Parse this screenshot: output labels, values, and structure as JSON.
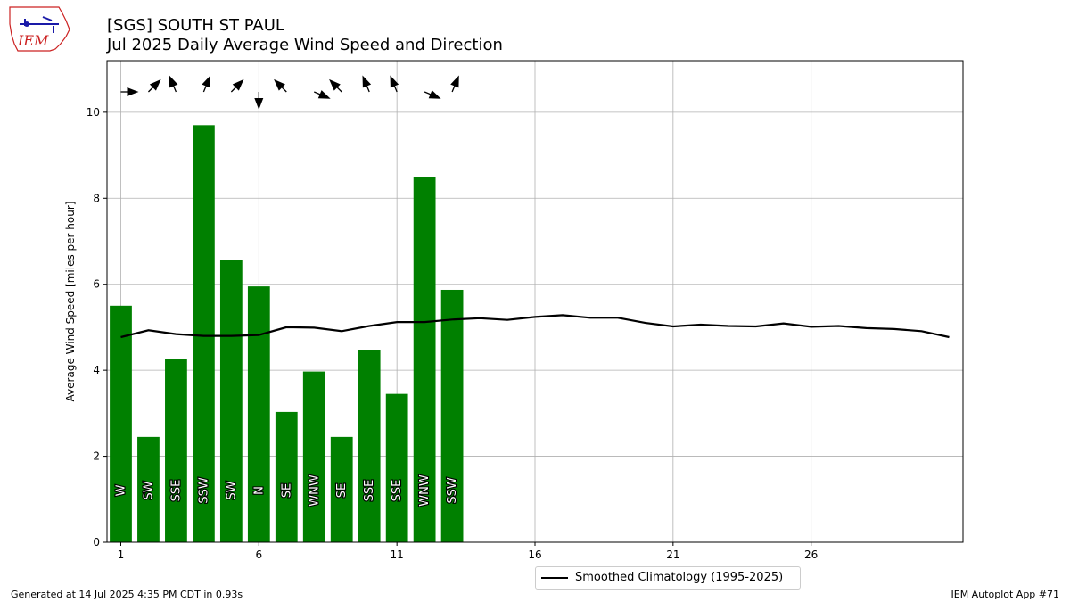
{
  "logo": {
    "text": "IEM"
  },
  "header": {
    "title_line1": "[SGS] SOUTH ST PAUL",
    "title_line2": "Jul 2025 Daily Average Wind Speed and Direction"
  },
  "footer": {
    "left": "Generated at 14 Jul 2025 4:35 PM CDT in 0.93s",
    "right": "IEM Autoplot App #71"
  },
  "legend": {
    "label": "Smoothed Climatology (1995-2025)"
  },
  "colors": {
    "bar": "#008000",
    "line": "#000000",
    "grid": "#b0b0b0",
    "logo": "#cc2222"
  },
  "chart_data": {
    "type": "bar",
    "ylabel": "Average Wind Speed [miles per hour]",
    "xlabel": "",
    "xlim": [
      0.5,
      31.5
    ],
    "ylim": [
      0,
      11.2
    ],
    "xticks": [
      1,
      6,
      11,
      16,
      21,
      26
    ],
    "yticks": [
      0,
      2,
      4,
      6,
      8,
      10
    ],
    "grid": true,
    "legend_position": "bottom-center",
    "days": [
      1,
      2,
      3,
      4,
      5,
      6,
      7,
      8,
      9,
      10,
      11,
      12,
      13
    ],
    "speeds": [
      5.5,
      2.45,
      4.27,
      9.7,
      6.57,
      5.95,
      3.03,
      3.97,
      2.45,
      4.47,
      3.45,
      8.5,
      5.87
    ],
    "directions": [
      "W",
      "SW",
      "SSE",
      "SSW",
      "SW",
      "N",
      "SE",
      "WNW",
      "SE",
      "SSE",
      "SSE",
      "WNW",
      "SSW"
    ],
    "climatology": {
      "name": "Smoothed Climatology (1995-2025)",
      "x": [
        1,
        2,
        3,
        4,
        5,
        6,
        7,
        8,
        9,
        10,
        11,
        12,
        13,
        14,
        15,
        16,
        17,
        18,
        19,
        20,
        21,
        22,
        23,
        24,
        25,
        26,
        27,
        28,
        29,
        30,
        31
      ],
      "values": [
        4.77,
        4.93,
        4.84,
        4.8,
        4.8,
        4.82,
        5.0,
        4.99,
        4.91,
        5.03,
        5.12,
        5.12,
        5.18,
        5.21,
        5.17,
        5.24,
        5.28,
        5.22,
        5.22,
        5.1,
        5.02,
        5.06,
        5.03,
        5.02,
        5.09,
        5.01,
        5.03,
        4.98,
        4.96,
        4.91,
        4.77
      ]
    }
  }
}
